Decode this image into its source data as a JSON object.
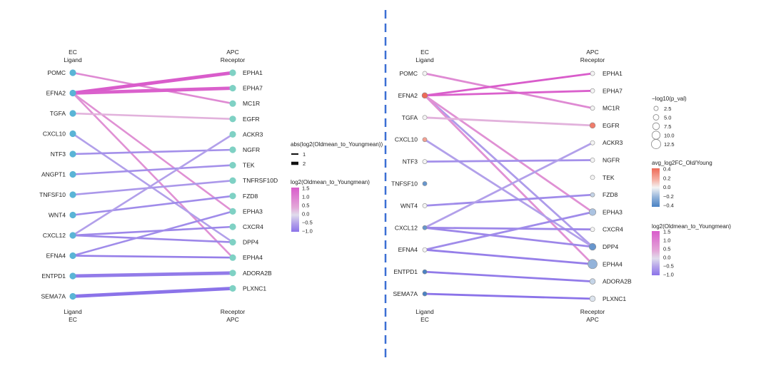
{
  "colors": {
    "background": "#ffffff",
    "divider": "#3b6fd4",
    "node_left_panel": "#5ab4d6",
    "node_right_panel_default": "#ffffff",
    "gradient_link": [
      "#8b73e9",
      "#b5a4ea",
      "#e0dcec",
      "#e3a8d8",
      "#d95ccb"
    ],
    "gradient_node": [
      "#4a82c4",
      "#93b3da",
      "#f4f4f4",
      "#f5b2a6",
      "#ee6a57"
    ]
  },
  "chart_data": [
    {
      "type": "network",
      "panel": "left",
      "header_left": [
        "EC",
        "Ligand"
      ],
      "header_right": [
        "APC",
        "Receptor"
      ],
      "footer_left": [
        "Ligand",
        "EC"
      ],
      "footer_right": [
        "Receptor",
        "APC"
      ],
      "ligands": [
        "POMC",
        "EFNA2",
        "TGFA",
        "CXCL10",
        "NTF3",
        "ANGPT1",
        "TNFSF10",
        "WNT4",
        "CXCL12",
        "EFNA4",
        "ENTPD1",
        "SEMA7A"
      ],
      "receptors": [
        "EPHA1",
        "EPHA7",
        "MC1R",
        "EGFR",
        "ACKR3",
        "NGFR",
        "TEK",
        "TNFRSF10D",
        "FZD8",
        "EPHA3",
        "CXCR4",
        "DPP4",
        "EPHA4",
        "ADORA2B",
        "PLXNC1"
      ],
      "links": [
        {
          "from": "POMC",
          "to": "MC1R",
          "log2fc": 0.9,
          "abs": 1
        },
        {
          "from": "EFNA2",
          "to": "EPHA1",
          "log2fc": 1.5,
          "abs": 2
        },
        {
          "from": "EFNA2",
          "to": "EPHA7",
          "log2fc": 1.45,
          "abs": 2
        },
        {
          "from": "EFNA2",
          "to": "EPHA3",
          "log2fc": 0.8,
          "abs": 1
        },
        {
          "from": "EFNA2",
          "to": "EPHA4",
          "log2fc": 0.8,
          "abs": 1
        },
        {
          "from": "TGFA",
          "to": "EGFR",
          "log2fc": 0.4,
          "abs": 1
        },
        {
          "from": "CXCL10",
          "to": "DPP4",
          "log2fc": -0.55,
          "abs": 1
        },
        {
          "from": "NTF3",
          "to": "NGFR",
          "log2fc": -0.75,
          "abs": 1
        },
        {
          "from": "ANGPT1",
          "to": "TEK",
          "log2fc": -0.75,
          "abs": 1
        },
        {
          "from": "TNFSF10",
          "to": "TNFRSF10D",
          "log2fc": -0.65,
          "abs": 1
        },
        {
          "from": "WNT4",
          "to": "FZD8",
          "log2fc": -0.8,
          "abs": 1
        },
        {
          "from": "CXCL12",
          "to": "ACKR3",
          "log2fc": -0.55,
          "abs": 1
        },
        {
          "from": "CXCL12",
          "to": "CXCR4",
          "log2fc": -0.85,
          "abs": 1
        },
        {
          "from": "CXCL12",
          "to": "DPP4",
          "log2fc": -0.85,
          "abs": 1
        },
        {
          "from": "EFNA4",
          "to": "EPHA3",
          "log2fc": -0.8,
          "abs": 1
        },
        {
          "from": "EFNA4",
          "to": "EPHA4",
          "log2fc": -0.95,
          "abs": 1
        },
        {
          "from": "ENTPD1",
          "to": "ADORA2B",
          "log2fc": -1.0,
          "abs": 2
        },
        {
          "from": "SEMA7A",
          "to": "PLXNC1",
          "log2fc": -1.1,
          "abs": 2
        }
      ],
      "legend_width_title": "abs(log2(Oldmean_to_Youngmean))",
      "legend_width_items": [
        "1",
        "2"
      ],
      "legend_color_title": "log2(Oldmean_to_Youngmean)",
      "legend_color_ticks": [
        "1.5",
        "1.0",
        "0.5",
        "0.0",
        "−0.5",
        "−1.0"
      ]
    },
    {
      "type": "network",
      "panel": "right",
      "header_left": [
        "EC",
        "Ligand"
      ],
      "header_right": [
        "APC",
        "Receptor"
      ],
      "footer_left": [
        "Ligand",
        "EC"
      ],
      "footer_right": [
        "Receptor",
        "APC"
      ],
      "ligands": [
        "POMC",
        "EFNA2",
        "TGFA",
        "CXCL10",
        "NTF3",
        "TNFSF10",
        "WNT4",
        "CXCL12",
        "EFNA4",
        "ENTPD1",
        "SEMA7A"
      ],
      "receptors": [
        "EPHA1",
        "EPHA7",
        "MC1R",
        "EGFR",
        "ACKR3",
        "NGFR",
        "TEK",
        "FZD8",
        "EPHA3",
        "CXCR4",
        "DPP4",
        "EPHA4",
        "ADORA2B",
        "PLXNC1"
      ],
      "ligand_nodes": [
        {
          "name": "POMC",
          "avg_log2fc": 0.0,
          "size": 2.5
        },
        {
          "name": "EFNA2",
          "avg_log2fc": 0.4,
          "size": 5
        },
        {
          "name": "TGFA",
          "avg_log2fc": 0.0,
          "size": 2.5
        },
        {
          "name": "CXCL10",
          "avg_log2fc": 0.25,
          "size": 2.5
        },
        {
          "name": "NTF3",
          "avg_log2fc": 0.0,
          "size": 2.5
        },
        {
          "name": "TNFSF10",
          "avg_log2fc": -0.35,
          "size": 2.5
        },
        {
          "name": "WNT4",
          "avg_log2fc": 0.0,
          "size": 2.5
        },
        {
          "name": "CXCL12",
          "avg_log2fc": -0.35,
          "size": 2.5
        },
        {
          "name": "EFNA4",
          "avg_log2fc": 0.0,
          "size": 2.5
        },
        {
          "name": "ENTPD1",
          "avg_log2fc": -0.45,
          "size": 2.5
        },
        {
          "name": "SEMA7A",
          "avg_log2fc": -0.45,
          "size": 2.5
        }
      ],
      "receptor_nodes": [
        {
          "name": "EPHA1",
          "avg_log2fc": 0.0,
          "size": 2.5
        },
        {
          "name": "EPHA7",
          "avg_log2fc": 0.0,
          "size": 2.5
        },
        {
          "name": "MC1R",
          "avg_log2fc": 0.0,
          "size": 2.5
        },
        {
          "name": "EGFR",
          "avg_log2fc": 0.35,
          "size": 5
        },
        {
          "name": "ACKR3",
          "avg_log2fc": 0.0,
          "size": 2.5
        },
        {
          "name": "NGFR",
          "avg_log2fc": 0.0,
          "size": 2.5
        },
        {
          "name": "TEK",
          "avg_log2fc": 0.0,
          "size": 2.5
        },
        {
          "name": "FZD8",
          "avg_log2fc": -0.1,
          "size": 2.5
        },
        {
          "name": "EPHA3",
          "avg_log2fc": -0.15,
          "size": 7.5
        },
        {
          "name": "CXCR4",
          "avg_log2fc": 0.0,
          "size": 2.5
        },
        {
          "name": "DPP4",
          "avg_log2fc": -0.35,
          "size": 7.5
        },
        {
          "name": "EPHA4",
          "avg_log2fc": -0.2,
          "size": 12.5
        },
        {
          "name": "ADORA2B",
          "avg_log2fc": -0.1,
          "size": 5
        },
        {
          "name": "PLXNC1",
          "avg_log2fc": -0.05,
          "size": 5
        }
      ],
      "links": [
        {
          "from": "POMC",
          "to": "MC1R",
          "log2fc": 0.9
        },
        {
          "from": "EFNA2",
          "to": "EPHA1",
          "log2fc": 1.5
        },
        {
          "from": "EFNA2",
          "to": "EPHA7",
          "log2fc": 1.45
        },
        {
          "from": "EFNA2",
          "to": "DPP4",
          "log2fc": -0.6
        },
        {
          "from": "EFNA2",
          "to": "EPHA3",
          "log2fc": 0.8
        },
        {
          "from": "EFNA2",
          "to": "EPHA4",
          "log2fc": 0.8
        },
        {
          "from": "TGFA",
          "to": "EGFR",
          "log2fc": 0.4
        },
        {
          "from": "CXCL10",
          "to": "DPP4",
          "log2fc": -0.55
        },
        {
          "from": "NTF3",
          "to": "NGFR",
          "log2fc": -0.75
        },
        {
          "from": "WNT4",
          "to": "FZD8",
          "log2fc": -0.8
        },
        {
          "from": "CXCL12",
          "to": "ACKR3",
          "log2fc": -0.55
        },
        {
          "from": "CXCL12",
          "to": "CXCR4",
          "log2fc": -0.85
        },
        {
          "from": "CXCL12",
          "to": "DPP4",
          "log2fc": -0.85
        },
        {
          "from": "EFNA4",
          "to": "EPHA3",
          "log2fc": -0.8
        },
        {
          "from": "EFNA4",
          "to": "EPHA4",
          "log2fc": -0.95
        },
        {
          "from": "ENTPD1",
          "to": "ADORA2B",
          "log2fc": -1.0
        },
        {
          "from": "SEMA7A",
          "to": "PLXNC1",
          "log2fc": -1.1
        }
      ],
      "legend_size_title": "−log10(p_val)",
      "legend_size_items": [
        "2.5",
        "5.0",
        "7.5",
        "10.0",
        "12.5"
      ],
      "legend_node_title": "avg_log2FC_Old/Young",
      "legend_node_ticks": [
        "0.4",
        "0.2",
        "0.0",
        "−0.2",
        "−0.4"
      ],
      "legend_color_title": "log2(Oldmean_to_Youngmean)",
      "legend_color_ticks": [
        "1.5",
        "1.0",
        "0.5",
        "0.0",
        "−0.5",
        "−1.0"
      ]
    }
  ]
}
